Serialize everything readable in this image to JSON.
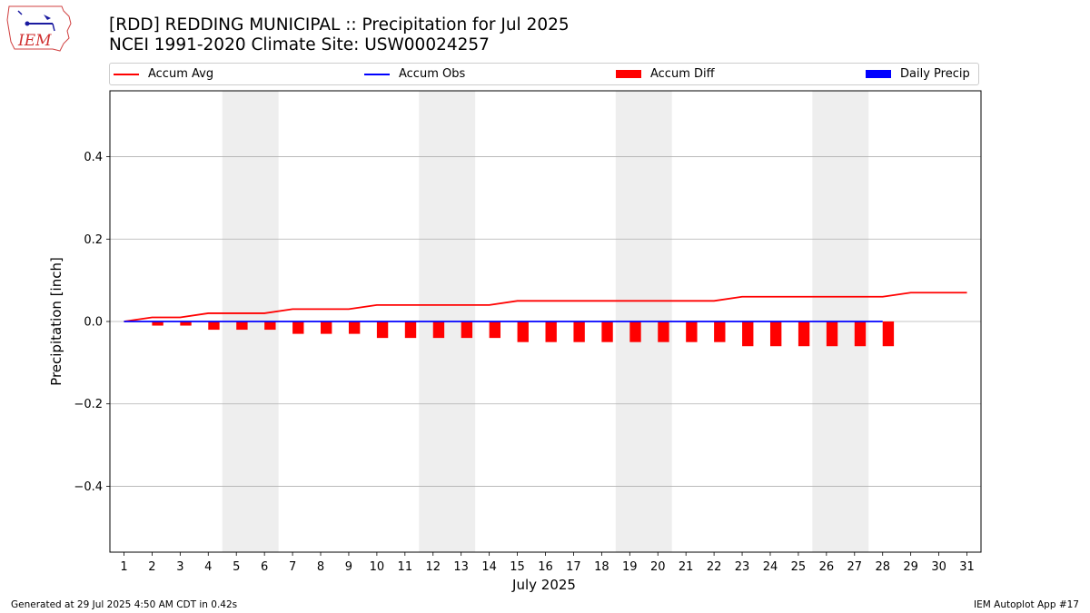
{
  "header": {
    "title": "[RDD] REDDING MUNICIPAL :: Precipitation for Jul 2025",
    "subtitle": "NCEI 1991-2020 Climate Site: USW00024257",
    "logo_text": "IEM"
  },
  "footer": {
    "generated": "Generated at 29 Jul 2025 4:50 AM CDT in 0.42s",
    "app": "IEM Autoplot App #17"
  },
  "colors": {
    "avg": "#ff0000",
    "obs": "#0000ff",
    "diff": "#ff0000",
    "daily": "#0000ff",
    "weekend": "#eeeeee",
    "grid": "#b0b0b0"
  },
  "chart_data": {
    "type": "bar",
    "title": "[RDD] REDDING MUNICIPAL :: Precipitation for Jul 2025",
    "xlabel": "July 2025",
    "ylabel": "Precipitation [inch]",
    "ylim": [
      -0.56,
      0.56
    ],
    "xlim": [
      0.5,
      31.5
    ],
    "yticks": [
      -0.4,
      -0.2,
      0.0,
      0.2,
      0.4
    ],
    "ytick_labels": [
      "−0.4",
      "−0.2",
      "0.0",
      "0.2",
      "0.4"
    ],
    "grid": "y",
    "legend_position": "top",
    "legend": [
      "Accum Avg",
      "Accum Obs",
      "Accum Diff",
      "Daily Precip"
    ],
    "x": [
      1,
      2,
      3,
      4,
      5,
      6,
      7,
      8,
      9,
      10,
      11,
      12,
      13,
      14,
      15,
      16,
      17,
      18,
      19,
      20,
      21,
      22,
      23,
      24,
      25,
      26,
      27,
      28,
      29,
      30,
      31
    ],
    "weekend_spans": [
      [
        4.5,
        6.5
      ],
      [
        11.5,
        13.5
      ],
      [
        18.5,
        20.5
      ],
      [
        25.5,
        27.5
      ]
    ],
    "series": [
      {
        "name": "Accum Avg",
        "kind": "line",
        "x": [
          1,
          2,
          3,
          4,
          5,
          6,
          7,
          8,
          9,
          10,
          11,
          12,
          13,
          14,
          15,
          16,
          17,
          18,
          19,
          20,
          21,
          22,
          23,
          24,
          25,
          26,
          27,
          28,
          29,
          30,
          31
        ],
        "values": [
          0.0,
          0.01,
          0.01,
          0.02,
          0.02,
          0.02,
          0.03,
          0.03,
          0.03,
          0.04,
          0.04,
          0.04,
          0.04,
          0.04,
          0.05,
          0.05,
          0.05,
          0.05,
          0.05,
          0.05,
          0.05,
          0.05,
          0.06,
          0.06,
          0.06,
          0.06,
          0.06,
          0.06,
          0.07,
          0.07,
          0.07
        ]
      },
      {
        "name": "Accum Obs",
        "kind": "line",
        "x": [
          1,
          2,
          3,
          4,
          5,
          6,
          7,
          8,
          9,
          10,
          11,
          12,
          13,
          14,
          15,
          16,
          17,
          18,
          19,
          20,
          21,
          22,
          23,
          24,
          25,
          26,
          27,
          28
        ],
        "values": [
          0,
          0,
          0,
          0,
          0,
          0,
          0,
          0,
          0,
          0,
          0,
          0,
          0,
          0,
          0,
          0,
          0,
          0,
          0,
          0,
          0,
          0,
          0,
          0,
          0,
          0,
          0,
          0
        ]
      },
      {
        "name": "Accum Diff",
        "kind": "bar",
        "x": [
          1,
          2,
          3,
          4,
          5,
          6,
          7,
          8,
          9,
          10,
          11,
          12,
          13,
          14,
          15,
          16,
          17,
          18,
          19,
          20,
          21,
          22,
          23,
          24,
          25,
          26,
          27,
          28
        ],
        "values": [
          0.0,
          -0.01,
          -0.01,
          -0.02,
          -0.02,
          -0.02,
          -0.03,
          -0.03,
          -0.03,
          -0.04,
          -0.04,
          -0.04,
          -0.04,
          -0.04,
          -0.05,
          -0.05,
          -0.05,
          -0.05,
          -0.05,
          -0.05,
          -0.05,
          -0.05,
          -0.06,
          -0.06,
          -0.06,
          -0.06,
          -0.06,
          -0.06
        ]
      },
      {
        "name": "Daily Precip",
        "kind": "bar",
        "x": [
          1,
          2,
          3,
          4,
          5,
          6,
          7,
          8,
          9,
          10,
          11,
          12,
          13,
          14,
          15,
          16,
          17,
          18,
          19,
          20,
          21,
          22,
          23,
          24,
          25,
          26,
          27,
          28
        ],
        "values": [
          0,
          0,
          0,
          0,
          0,
          0,
          0,
          0,
          0,
          0,
          0,
          0,
          0,
          0,
          0,
          0,
          0,
          0,
          0,
          0,
          0,
          0,
          0,
          0,
          0,
          0,
          0,
          0
        ]
      }
    ]
  }
}
